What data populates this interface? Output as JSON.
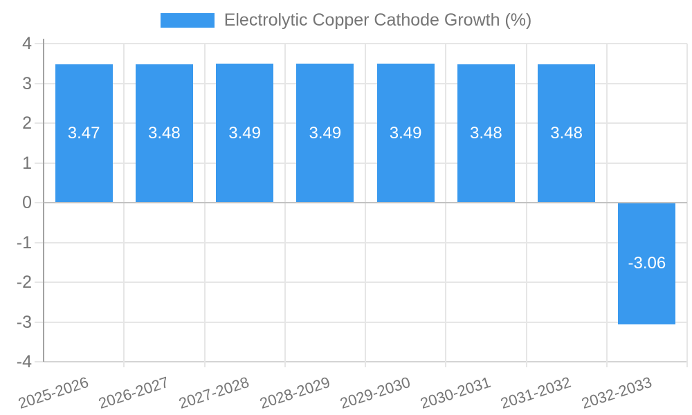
{
  "chart_data": {
    "type": "bar",
    "title": "Electrolytic Copper Cathode Growth (%)",
    "categories": [
      "2025-2026",
      "2026-2027",
      "2027-2028",
      "2028-2029",
      "2029-2030",
      "2030-2031",
      "2031-2032",
      "2032-2033"
    ],
    "values": [
      3.47,
      3.48,
      3.49,
      3.49,
      3.49,
      3.48,
      3.48,
      -3.06
    ],
    "value_labels": [
      "3.47",
      "3.48",
      "3.49",
      "3.49",
      "3.49",
      "3.48",
      "3.48",
      "-3.06"
    ],
    "ytick_labels": [
      "4",
      "3",
      "2",
      "1",
      "0",
      "-1",
      "-2",
      "-3",
      "-4"
    ],
    "ylim": [
      -4,
      4
    ],
    "ytick_step": 1,
    "xlabel": "",
    "ylabel": "",
    "grid": true,
    "legend_position": "top",
    "colors": {
      "bar": "#3999EE",
      "text": "#757575",
      "value_label": "#FFFFFF",
      "gridline": "#E6E6E6",
      "zero_line": "#C2C2C2",
      "axis_line": "#A3A3A3",
      "bottom_line": "#D4D4D4",
      "background": "#FFFFFF"
    }
  }
}
